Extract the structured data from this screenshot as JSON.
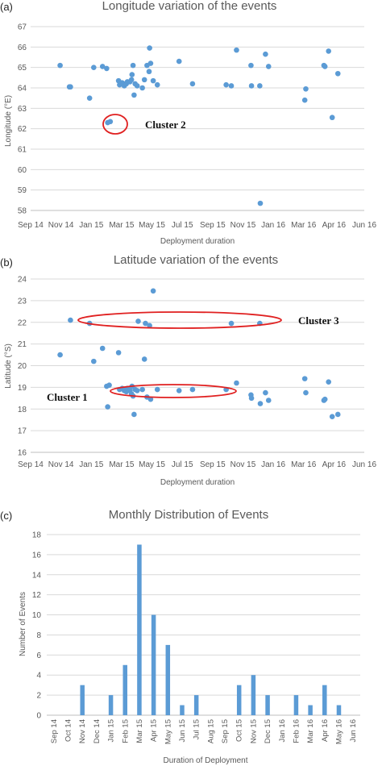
{
  "colors": {
    "marker": "#5B9BD5",
    "bar": "#5B9BD5",
    "grid": "#D9D9D9",
    "axis": "#595959",
    "cluster": "#E02020"
  },
  "chart_data": [
    {
      "panel_label": "(a)",
      "type": "scatter",
      "title": "Longitude variation of the events",
      "xlabel": "Deployment duration",
      "ylabel": "Longitude (°E)",
      "x_ticks": [
        "Sep 14",
        "Nov 14",
        "Jan 15",
        "Mar 15",
        "May 15",
        "Jul 15",
        "Sep 15",
        "Nov 15",
        "Jan 16",
        "Mar 16",
        "Apr 16",
        "Jun 16"
      ],
      "ylim": [
        58,
        67
      ],
      "y_ticks": [
        "58",
        "59",
        "60",
        "61",
        "62",
        "63",
        "64",
        "65",
        "66",
        "67"
      ],
      "grid": "horizontal",
      "annotations": [
        {
          "text": "Cluster 2"
        }
      ],
      "points": [
        {
          "x": "2014-11-10",
          "y": 65.1
        },
        {
          "x": "2014-11-28",
          "y": 64.05
        },
        {
          "x": "2014-11-30",
          "y": 64.05
        },
        {
          "x": "2015-01-06",
          "y": 63.5
        },
        {
          "x": "2015-01-14",
          "y": 65.0
        },
        {
          "x": "2015-01-31",
          "y": 65.05
        },
        {
          "x": "2015-02-08",
          "y": 64.95
        },
        {
          "x": "2015-02-10",
          "y": 62.3
        },
        {
          "x": "2015-02-15",
          "y": 62.35
        },
        {
          "x": "2015-03-03",
          "y": 64.35
        },
        {
          "x": "2015-03-05",
          "y": 64.15
        },
        {
          "x": "2015-03-10",
          "y": 64.25
        },
        {
          "x": "2015-03-14",
          "y": 64.1
        },
        {
          "x": "2015-03-16",
          "y": 64.2
        },
        {
          "x": "2015-03-18",
          "y": 64.2
        },
        {
          "x": "2015-03-20",
          "y": 64.3
        },
        {
          "x": "2015-03-25",
          "y": 64.3
        },
        {
          "x": "2015-03-28",
          "y": 64.4
        },
        {
          "x": "2015-03-29",
          "y": 64.65
        },
        {
          "x": "2015-03-31",
          "y": 65.1
        },
        {
          "x": "2015-04-02",
          "y": 63.65
        },
        {
          "x": "2015-04-04",
          "y": 64.2
        },
        {
          "x": "2015-04-08",
          "y": 64.1
        },
        {
          "x": "2015-04-18",
          "y": 64.0
        },
        {
          "x": "2015-04-22",
          "y": 64.4
        },
        {
          "x": "2015-04-27",
          "y": 65.1
        },
        {
          "x": "2015-05-01",
          "y": 64.8
        },
        {
          "x": "2015-05-02",
          "y": 65.95
        },
        {
          "x": "2015-05-04",
          "y": 65.2
        },
        {
          "x": "2015-05-09",
          "y": 64.35
        },
        {
          "x": "2015-05-17",
          "y": 64.15
        },
        {
          "x": "2015-06-28",
          "y": 65.3
        },
        {
          "x": "2015-07-24",
          "y": 64.2
        },
        {
          "x": "2015-09-27",
          "y": 64.15
        },
        {
          "x": "2015-10-07",
          "y": 64.1
        },
        {
          "x": "2015-10-17",
          "y": 65.85
        },
        {
          "x": "2015-11-14",
          "y": 65.1
        },
        {
          "x": "2015-11-15",
          "y": 64.1
        },
        {
          "x": "2015-12-01",
          "y": 64.1
        },
        {
          "x": "2015-12-02",
          "y": 58.35
        },
        {
          "x": "2015-12-12",
          "y": 65.65
        },
        {
          "x": "2015-12-18",
          "y": 65.05
        },
        {
          "x": "2016-02-26",
          "y": 63.4
        },
        {
          "x": "2016-02-28",
          "y": 63.95
        },
        {
          "x": "2016-04-03",
          "y": 65.1
        },
        {
          "x": "2016-04-05",
          "y": 65.05
        },
        {
          "x": "2016-04-12",
          "y": 65.8
        },
        {
          "x": "2016-04-19",
          "y": 62.55
        },
        {
          "x": "2016-04-30",
          "y": 64.7
        }
      ]
    },
    {
      "panel_label": "(b)",
      "type": "scatter",
      "title": "Latitude variation of the events",
      "xlabel": "Deployment duration",
      "ylabel": "Latitude (°S)",
      "x_ticks": [
        "Sep 14",
        "Nov 14",
        "Jan 15",
        "Mar 15",
        "May 15",
        "Jul 15",
        "Sep 15",
        "Nov 15",
        "Jan 16",
        "Mar 16",
        "Apr 16",
        "Jun 16"
      ],
      "ylim": [
        16,
        24
      ],
      "y_ticks": [
        "16",
        "17",
        "18",
        "19",
        "20",
        "21",
        "22",
        "23",
        "24"
      ],
      "grid": "horizontal",
      "annotations": [
        {
          "text": "Cluster 3"
        },
        {
          "text": "Cluster 1"
        }
      ],
      "points": [
        {
          "x": "2014-11-10",
          "y": 20.5
        },
        {
          "x": "2014-11-30",
          "y": 22.1
        },
        {
          "x": "2015-01-06",
          "y": 21.95
        },
        {
          "x": "2015-01-14",
          "y": 20.2
        },
        {
          "x": "2015-01-31",
          "y": 20.8
        },
        {
          "x": "2015-02-08",
          "y": 19.05
        },
        {
          "x": "2015-02-10",
          "y": 18.1
        },
        {
          "x": "2015-02-13",
          "y": 19.1
        },
        {
          "x": "2015-03-03",
          "y": 20.6
        },
        {
          "x": "2015-03-05",
          "y": 18.9
        },
        {
          "x": "2015-03-10",
          "y": 18.95
        },
        {
          "x": "2015-03-14",
          "y": 18.85
        },
        {
          "x": "2015-03-16",
          "y": 18.9
        },
        {
          "x": "2015-03-18",
          "y": 18.8
        },
        {
          "x": "2015-03-20",
          "y": 18.95
        },
        {
          "x": "2015-03-25",
          "y": 18.85
        },
        {
          "x": "2015-03-28",
          "y": 18.7
        },
        {
          "x": "2015-03-29",
          "y": 19.05
        },
        {
          "x": "2015-03-31",
          "y": 18.6
        },
        {
          "x": "2015-04-02",
          "y": 17.75
        },
        {
          "x": "2015-04-04",
          "y": 18.9
        },
        {
          "x": "2015-04-08",
          "y": 18.85
        },
        {
          "x": "2015-04-18",
          "y": 18.9
        },
        {
          "x": "2015-04-10",
          "y": 22.05
        },
        {
          "x": "2015-04-22",
          "y": 20.3
        },
        {
          "x": "2015-04-24",
          "y": 21.95
        },
        {
          "x": "2015-04-27",
          "y": 18.55
        },
        {
          "x": "2015-05-02",
          "y": 21.85
        },
        {
          "x": "2015-05-04",
          "y": 18.45
        },
        {
          "x": "2015-05-09",
          "y": 23.45
        },
        {
          "x": "2015-05-17",
          "y": 18.9
        },
        {
          "x": "2015-06-28",
          "y": 18.85
        },
        {
          "x": "2015-07-24",
          "y": 18.9
        },
        {
          "x": "2015-09-27",
          "y": 18.9
        },
        {
          "x": "2015-10-07",
          "y": 21.95
        },
        {
          "x": "2015-10-17",
          "y": 19.2
        },
        {
          "x": "2015-11-14",
          "y": 18.65
        },
        {
          "x": "2015-11-15",
          "y": 18.5
        },
        {
          "x": "2015-12-01",
          "y": 21.95
        },
        {
          "x": "2015-12-02",
          "y": 18.25
        },
        {
          "x": "2015-12-12",
          "y": 18.75
        },
        {
          "x": "2015-12-18",
          "y": 18.4
        },
        {
          "x": "2016-02-26",
          "y": 19.4
        },
        {
          "x": "2016-02-28",
          "y": 18.75
        },
        {
          "x": "2016-04-03",
          "y": 18.4
        },
        {
          "x": "2016-04-05",
          "y": 18.45
        },
        {
          "x": "2016-04-12",
          "y": 19.25
        },
        {
          "x": "2016-04-19",
          "y": 17.65
        },
        {
          "x": "2016-04-30",
          "y": 17.75
        }
      ]
    },
    {
      "panel_label": "(c)",
      "type": "bar",
      "title": "Monthly Distribution of Events",
      "xlabel": "Duration of Deployment",
      "ylabel": "Number of Events",
      "ylim": [
        0,
        18
      ],
      "y_ticks": [
        "0",
        "2",
        "4",
        "6",
        "8",
        "10",
        "12",
        "14",
        "16",
        "18"
      ],
      "grid": "horizontal",
      "categories": [
        "Sep 14",
        "Oct 14",
        "Nov 14",
        "Dec 14",
        "Jan 15",
        "Feb 15",
        "Mar 15",
        "Apr 15",
        "May 15",
        "Jun 15",
        "Jul 15",
        "Aug 15",
        "Sep 15",
        "Oct 15",
        "Nov 15",
        "Dec 15",
        "Jan 16",
        "Feb 16",
        "Mar 16",
        "Apr 16",
        "May 16",
        "Jun 16"
      ],
      "values": [
        0,
        0,
        3,
        0,
        2,
        5,
        17,
        10,
        7,
        1,
        2,
        0,
        0,
        3,
        4,
        2,
        0,
        2,
        1,
        3,
        1,
        0
      ]
    }
  ]
}
